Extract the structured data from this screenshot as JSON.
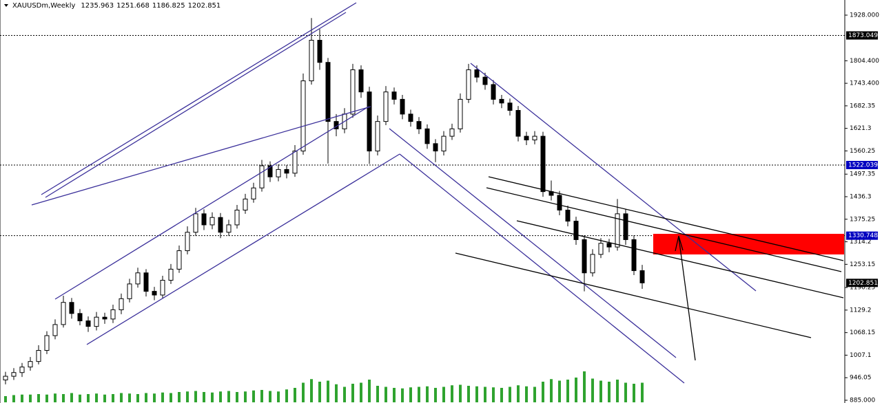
{
  "chart_data": {
    "type": "candlestick",
    "title": "XAUUSDm,Weekly",
    "ylim": [
      885,
      1928
    ],
    "yticks": [
      {
        "value": 1928,
        "label": "1928.000"
      },
      {
        "value": 1804.4,
        "label": "1804.400"
      },
      {
        "value": 1743.4,
        "label": "1743.400"
      },
      1682.35,
      1621.3,
      1560.25,
      1497.35,
      1436.3,
      1375.25,
      1314.2,
      1253.15,
      1190.25,
      1129.2,
      1068.15,
      1007.1,
      946.05,
      {
        "value": 885,
        "label": "885.000"
      }
    ],
    "price_levels": [
      {
        "value": 1873.049,
        "color": "#000000",
        "line": true
      },
      {
        "value": 1522.039,
        "color": "#0000c0",
        "line": true
      },
      {
        "value": 1330.748,
        "color": "#0000c0",
        "line": true
      },
      {
        "value": 1202.851,
        "color": "#000000",
        "line": false
      }
    ],
    "open": [
      940,
      950,
      960,
      975,
      990,
      1020,
      1060,
      1090,
      1150,
      1120,
      1100,
      1085,
      1110,
      1105,
      1130,
      1160,
      1200,
      1230,
      1180,
      1170,
      1210,
      1240,
      1290,
      1340,
      1390,
      1360,
      1380,
      1340,
      1360,
      1400,
      1430,
      1460,
      1520,
      1490,
      1510,
      1500,
      1560,
      1750,
      1860,
      1800,
      1640,
      1620,
      1660,
      1780,
      1720,
      1560,
      1640,
      1720,
      1700,
      1660,
      1640,
      1620,
      1580,
      1560,
      1600,
      1620,
      1700,
      1780,
      1760,
      1740,
      1700,
      1690,
      1670,
      1600,
      1590,
      1600,
      1450,
      1440,
      1400,
      1370,
      1320,
      1230,
      1280,
      1310,
      1300,
      1390,
      1320,
      1235.963
    ],
    "high": [
      962,
      972,
      986,
      1002,
      1034,
      1072,
      1104,
      1168,
      1162,
      1132,
      1112,
      1124,
      1122,
      1144,
      1174,
      1214,
      1244,
      1240,
      1192,
      1222,
      1254,
      1304,
      1356,
      1406,
      1402,
      1394,
      1392,
      1374,
      1414,
      1444,
      1474,
      1536,
      1532,
      1524,
      1522,
      1576,
      1770,
      1920,
      1890,
      1812,
      1660,
      1676,
      1796,
      1792,
      1734,
      1656,
      1736,
      1732,
      1712,
      1672,
      1652,
      1632,
      1592,
      1614,
      1634,
      1716,
      1796,
      1792,
      1772,
      1752,
      1712,
      1702,
      1682,
      1612,
      1614,
      1612,
      1480,
      1452,
      1412,
      1382,
      1332,
      1294,
      1324,
      1322,
      1430,
      1402,
      1332,
      1251.668
    ],
    "low": [
      928,
      940,
      948,
      965,
      982,
      1010,
      1050,
      1082,
      1106,
      1088,
      1070,
      1074,
      1092,
      1094,
      1118,
      1150,
      1190,
      1166,
      1156,
      1160,
      1200,
      1230,
      1280,
      1330,
      1346,
      1348,
      1324,
      1330,
      1350,
      1390,
      1420,
      1450,
      1476,
      1478,
      1486,
      1490,
      1550,
      1740,
      1780,
      1526,
      1600,
      1608,
      1650,
      1704,
      1525,
      1548,
      1630,
      1686,
      1646,
      1626,
      1606,
      1566,
      1530,
      1548,
      1590,
      1610,
      1690,
      1746,
      1726,
      1686,
      1676,
      1656,
      1586,
      1576,
      1578,
      1436,
      1426,
      1386,
      1356,
      1306,
      1180,
      1220,
      1270,
      1286,
      1290,
      1306,
      1224,
      1186.825
    ],
    "close": [
      950,
      960,
      975,
      990,
      1020,
      1060,
      1090,
      1150,
      1120,
      1100,
      1085,
      1110,
      1105,
      1130,
      1160,
      1200,
      1230,
      1180,
      1170,
      1210,
      1240,
      1290,
      1340,
      1390,
      1360,
      1380,
      1340,
      1360,
      1400,
      1430,
      1460,
      1520,
      1490,
      1510,
      1500,
      1560,
      1750,
      1860,
      1800,
      1640,
      1620,
      1660,
      1780,
      1720,
      1560,
      1640,
      1720,
      1700,
      1660,
      1640,
      1620,
      1580,
      1560,
      1600,
      1620,
      1700,
      1780,
      1760,
      1740,
      1700,
      1690,
      1670,
      1600,
      1590,
      1600,
      1450,
      1440,
      1400,
      1370,
      1320,
      1230,
      1280,
      1310,
      1300,
      1390,
      1320,
      1235.963,
      1202.851
    ],
    "volume": [
      12,
      14,
      15,
      15,
      16,
      15,
      17,
      16,
      18,
      15,
      16,
      17,
      15,
      16,
      18,
      17,
      16,
      18,
      17,
      19,
      18,
      20,
      21,
      22,
      20,
      19,
      21,
      22,
      20,
      21,
      23,
      24,
      22,
      21,
      25,
      28,
      38,
      45,
      40,
      42,
      35,
      30,
      36,
      38,
      44,
      32,
      30,
      28,
      27,
      29,
      30,
      31,
      28,
      30,
      33,
      34,
      32,
      31,
      30,
      29,
      28,
      30,
      33,
      31,
      30,
      40,
      45,
      42,
      44,
      48,
      60,
      46,
      42,
      40,
      44,
      38,
      36,
      38
    ]
  }
}
